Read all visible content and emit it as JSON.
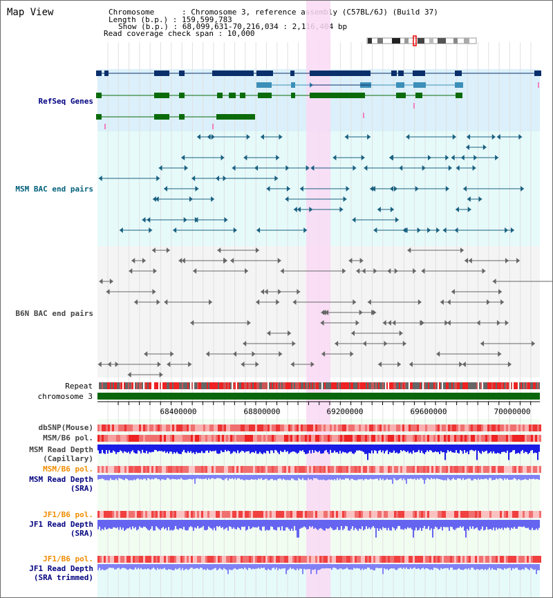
{
  "window": {
    "title": "Map View"
  },
  "info": {
    "chromosome": "Chromosome      : Chromosome 3, reference assembly (C57BL/6J) (Build 37)",
    "length": "Length (b.p.) : 159,599,783",
    "show": "Show (b.p.) : 68,099,631-70,216,034 : 2,116,404 bp",
    "read_coverage": "Read coverage check span : 10,000"
  },
  "tracks": {
    "refseq": "RefSeq Genes",
    "msm_bac": "MSM BAC end pairs",
    "b6n_bac": "B6N BAC end pairs",
    "repeat": "Repeat",
    "chromosome": "chromosome 3",
    "dbsnp": "dbSNP(Mouse)",
    "msm_b6_pol_1": "MSM/B6 pol.",
    "msm_read_depth_cap_1": "MSM Read Depth",
    "msm_read_depth_cap_2": "(Capillary)",
    "msm_b6_pol_2": "MSM/B6 pol.",
    "msm_read_depth_sra_1": "MSM Read Depth",
    "msm_read_depth_sra_2": "(SRA)",
    "jf1_b6_pol_1": "JF1/B6 pol.",
    "jf1_read_depth_sra_1": "JF1 Read Depth",
    "jf1_read_depth_sra_2": "(SRA)",
    "jf1_b6_pol_2": "JF1/B6 pol.",
    "jf1_read_depth_trim_1": "JF1 Read Depth",
    "jf1_read_depth_trim_2": "(SRA trimmed)"
  },
  "axis_ticks": [
    "68400000",
    "68800000",
    "69200000",
    "69600000",
    "70000000"
  ],
  "colors": {
    "refseq_bg": "#dbf0fa",
    "msm_bg": "#e6fafa",
    "b6n_bg": "#f4f4f4",
    "highlight": "#f9d9f4",
    "navy": "#0a2f6b",
    "teal": "#3c8fb8",
    "green": "#0b6b0b",
    "msm_pair": "#1a6080",
    "b6n_pair": "#666666",
    "chrom_bar": "#0a660a",
    "depth_blue": "#1b1be6",
    "depth_light": "#8080f5",
    "label_navy": "#000080",
    "label_teal": "#00607a",
    "label_orange": "#f08c00",
    "label_gray": "#444444"
  }
}
